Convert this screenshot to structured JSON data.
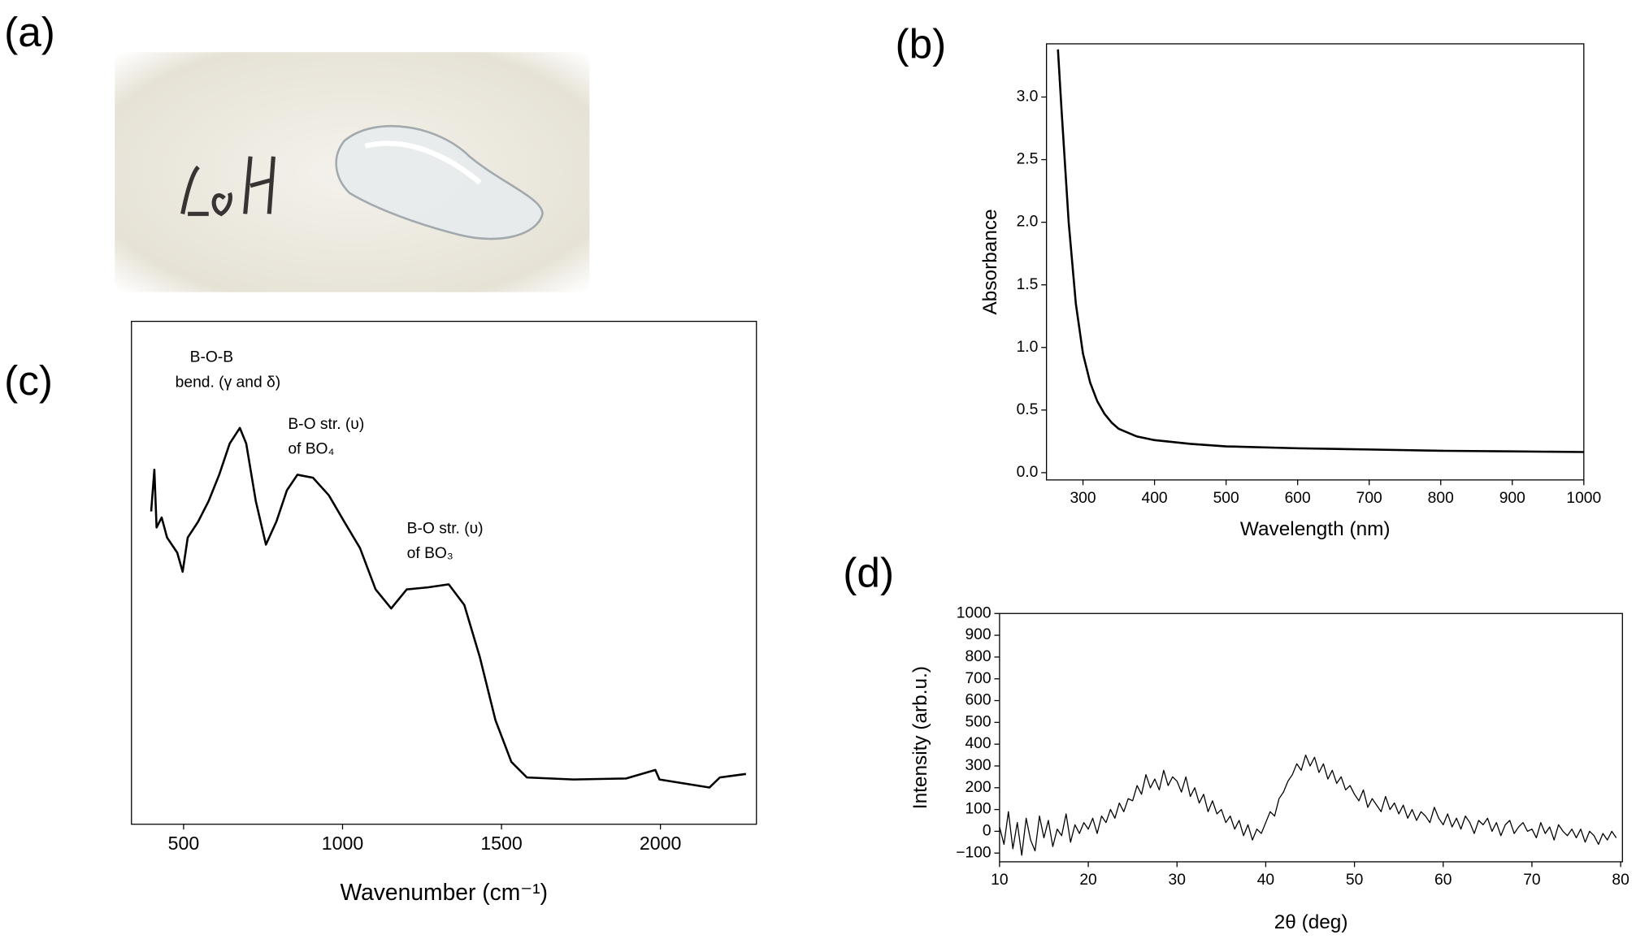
{
  "photo": {
    "panel_label": "(a)"
  },
  "chart_data": [
    {
      "type": "line",
      "panel_label": "(b)",
      "xlabel": "Wavelength (nm)",
      "ylabel": "Absorbance",
      "color": "#000000",
      "x": [
        265,
        270,
        280,
        290,
        300,
        310,
        320,
        330,
        340,
        350,
        375,
        400,
        450,
        500,
        600,
        700,
        800,
        900,
        1000
      ],
      "values": [
        3.38,
        2.9,
        2.0,
        1.35,
        0.95,
        0.72,
        0.57,
        0.47,
        0.4,
        0.35,
        0.29,
        0.26,
        0.23,
        0.21,
        0.195,
        0.185,
        0.175,
        0.17,
        0.165
      ],
      "xlim": [
        249,
        1000
      ],
      "xticks": [
        300,
        400,
        500,
        600,
        700,
        800,
        900,
        1000
      ],
      "ylim": [
        -0.058,
        3.425
      ],
      "yticks": [
        {
          "value": 0,
          "label": "0.0"
        },
        0.5,
        {
          "value": 1,
          "label": "1.0"
        },
        1.5,
        {
          "value": 2,
          "label": "2.0"
        },
        2.5,
        {
          "value": 3,
          "label": "3.0"
        }
      ]
    },
    {
      "type": "line",
      "panel_label": "(c)",
      "xlabel": "Wavenumber (cm⁻¹)",
      "color": "#000000",
      "annotations": [
        "B-O-B",
        "bend. (γ and δ)",
        "B-O str. (υ)",
        "of BO₄",
        "B-O str. (υ)",
        "of BO₃"
      ],
      "x": [
        398,
        408,
        415,
        431,
        448,
        480,
        497,
        513,
        546,
        579,
        612,
        645,
        677,
        697,
        727,
        759,
        792,
        825,
        858,
        907,
        957,
        1005,
        1055,
        1104,
        1153,
        1202,
        1268,
        1334,
        1383,
        1432,
        1481,
        1531,
        1580,
        1727,
        1892,
        1984,
        1997,
        2154,
        2187,
        2269
      ],
      "values": [
        62.2,
        70.5,
        59,
        61,
        57,
        54,
        50.2,
        57,
        60.2,
        64.3,
        69.5,
        75.7,
        78.8,
        75.7,
        64.3,
        55.6,
        60.2,
        66.4,
        69.5,
        68.9,
        65.4,
        60.2,
        54.9,
        46.7,
        42.9,
        46.7,
        47.1,
        47.7,
        43.6,
        33.2,
        20.7,
        12.4,
        9.3,
        8.9,
        9.1,
        10.8,
        8.9,
        7.3,
        9.3,
        10.0
      ],
      "xlim": [
        336,
        2302
      ],
      "xticks": [
        500,
        1000,
        1500,
        2000
      ],
      "ylim": [
        0,
        100
      ]
    },
    {
      "type": "line",
      "panel_label": "(d)",
      "xlabel": "2θ (deg)",
      "ylabel": "Intensity (arb.u.)",
      "color": "#000000",
      "x": [
        10,
        10.5,
        11,
        11.5,
        12,
        12.5,
        13,
        13.5,
        14,
        14.5,
        15,
        15.5,
        16,
        16.5,
        17,
        17.5,
        18,
        18.5,
        19,
        19.5,
        20,
        20.5,
        21,
        21.5,
        22,
        22.5,
        23,
        23.5,
        24,
        24.5,
        25,
        25.5,
        26,
        26.5,
        27,
        27.5,
        28,
        28.5,
        29,
        29.5,
        30,
        30.5,
        31,
        31.5,
        32,
        32.5,
        33,
        33.5,
        34,
        34.5,
        35,
        35.5,
        36,
        36.5,
        37,
        37.5,
        38,
        38.5,
        39,
        39.5,
        40,
        40.5,
        41,
        41.5,
        42,
        42.5,
        43,
        43.5,
        44,
        44.5,
        45,
        45.5,
        46,
        46.5,
        47,
        47.5,
        48,
        48.5,
        49,
        49.5,
        50,
        50.5,
        51,
        51.5,
        52,
        52.5,
        53,
        53.5,
        54,
        54.5,
        55,
        55.5,
        56,
        56.5,
        57,
        57.5,
        58,
        58.5,
        59,
        59.5,
        60,
        60.5,
        61,
        61.5,
        62,
        62.5,
        63,
        63.5,
        64,
        64.5,
        65,
        65.5,
        66,
        66.5,
        67,
        67.5,
        68,
        68.5,
        69,
        69.5,
        70,
        70.5,
        71,
        71.5,
        72,
        72.5,
        73,
        73.5,
        74,
        74.5,
        75,
        75.5,
        76,
        76.5,
        77,
        77.5,
        78,
        78.5,
        79,
        79.5
      ],
      "values": [
        20,
        -60,
        90,
        -80,
        40,
        -110,
        60,
        -40,
        -90,
        70,
        -30,
        50,
        -70,
        10,
        -20,
        80,
        -50,
        30,
        -10,
        40,
        10,
        60,
        -10,
        70,
        40,
        100,
        60,
        130,
        90,
        150,
        140,
        210,
        170,
        260,
        200,
        240,
        190,
        280,
        210,
        250,
        230,
        180,
        250,
        160,
        200,
        130,
        170,
        90,
        140,
        80,
        100,
        40,
        70,
        10,
        50,
        -20,
        30,
        -40,
        10,
        -10,
        40,
        90,
        70,
        150,
        180,
        230,
        260,
        310,
        280,
        350,
        300,
        340,
        270,
        310,
        240,
        280,
        220,
        250,
        190,
        210,
        170,
        140,
        190,
        110,
        150,
        120,
        90,
        160,
        100,
        130,
        80,
        120,
        60,
        100,
        50,
        90,
        70,
        40,
        110,
        60,
        30,
        80,
        20,
        60,
        10,
        70,
        40,
        -10,
        50,
        30,
        60,
        0,
        40,
        -20,
        30,
        50,
        -10,
        20,
        40,
        0,
        10,
        -30,
        40,
        -10,
        20,
        -40,
        30,
        0,
        -20,
        10,
        -30,
        10,
        -50,
        0,
        -20,
        -60,
        -10,
        -40,
        0,
        -30
      ],
      "xlim": [
        10,
        80.2
      ],
      "xticks": [
        10,
        20,
        30,
        40,
        50,
        60,
        70,
        80
      ],
      "ylim": [
        -140,
        1000
      ],
      "yticks": [
        {
          "value": -100,
          "label": "−100"
        },
        0,
        100,
        200,
        300,
        400,
        500,
        600,
        700,
        800,
        900,
        1000
      ]
    }
  ]
}
